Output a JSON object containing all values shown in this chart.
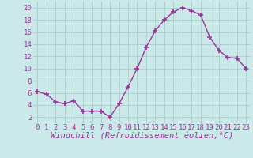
{
  "x": [
    0,
    1,
    2,
    3,
    4,
    5,
    6,
    7,
    8,
    9,
    10,
    11,
    12,
    13,
    14,
    15,
    16,
    17,
    18,
    19,
    20,
    21,
    22,
    23
  ],
  "y": [
    6.2,
    5.8,
    4.5,
    4.2,
    4.7,
    3.0,
    3.0,
    3.0,
    2.0,
    4.2,
    7.0,
    10.0,
    13.5,
    16.2,
    18.0,
    19.3,
    20.0,
    19.5,
    18.8,
    15.2,
    13.0,
    11.8,
    11.7,
    10.0
  ],
  "line_color": "#993399",
  "marker": "+",
  "marker_size": 4,
  "marker_lw": 1.2,
  "bg_color": "#cce9e9",
  "grid_color": "#aacccc",
  "xlabel": "Windchill (Refroidissement éolien,°C)",
  "xlim": [
    -0.5,
    23.5
  ],
  "ylim": [
    1,
    21
  ],
  "yticks": [
    2,
    4,
    6,
    8,
    10,
    12,
    14,
    16,
    18,
    20
  ],
  "xticks": [
    0,
    1,
    2,
    3,
    4,
    5,
    6,
    7,
    8,
    9,
    10,
    11,
    12,
    13,
    14,
    15,
    16,
    17,
    18,
    19,
    20,
    21,
    22,
    23
  ],
  "tick_label_fontsize": 6.5,
  "xlabel_fontsize": 7.5,
  "label_color": "#993399"
}
